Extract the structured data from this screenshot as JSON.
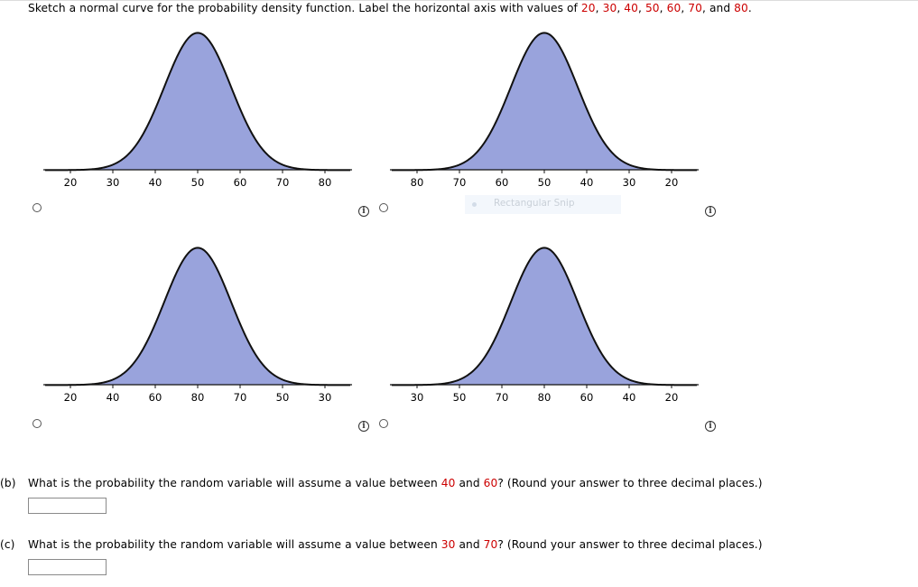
{
  "instruction": {
    "t1": "Sketch a normal curve for the probability density function. Label the horizontal axis with values of ",
    "v1": "20",
    "s1": ", ",
    "v2": "30",
    "s2": ", ",
    "v3": "40",
    "s3": ", ",
    "v4": "50",
    "s4": ", ",
    "v5": "60",
    "s5": ", ",
    "v6": "70",
    "s6": ", and ",
    "v7": "80",
    "end": "."
  },
  "graphs": [
    {
      "labels": [
        "20",
        "30",
        "40",
        "50",
        "60",
        "70",
        "80"
      ]
    },
    {
      "labels": [
        "80",
        "70",
        "60",
        "50",
        "40",
        "30",
        "20"
      ]
    },
    {
      "labels": [
        "20",
        "40",
        "60",
        "80",
        "70",
        "50",
        "30"
      ]
    },
    {
      "labels": [
        "30",
        "50",
        "70",
        "80",
        "60",
        "40",
        "20"
      ]
    }
  ],
  "overlay": {
    "text": "Rectangular Snip"
  },
  "info_glyph": "i",
  "part_b": {
    "label": "(b)",
    "t1": "What is the probability the random variable will assume a value between ",
    "v1": "40",
    "t2": " and ",
    "v2": "60",
    "t3": "? (Round your answer to three decimal places.)",
    "answer": ""
  },
  "part_c": {
    "label": "(c)",
    "t1": "What is the probability the random variable will assume a value between ",
    "v1": "30",
    "t2": " and ",
    "v2": "70",
    "t3": "? (Round your answer to three decimal places.)",
    "answer": ""
  },
  "colors": {
    "fill": "#99a3dc",
    "stroke": "#111111",
    "accent": "#cc0000"
  }
}
